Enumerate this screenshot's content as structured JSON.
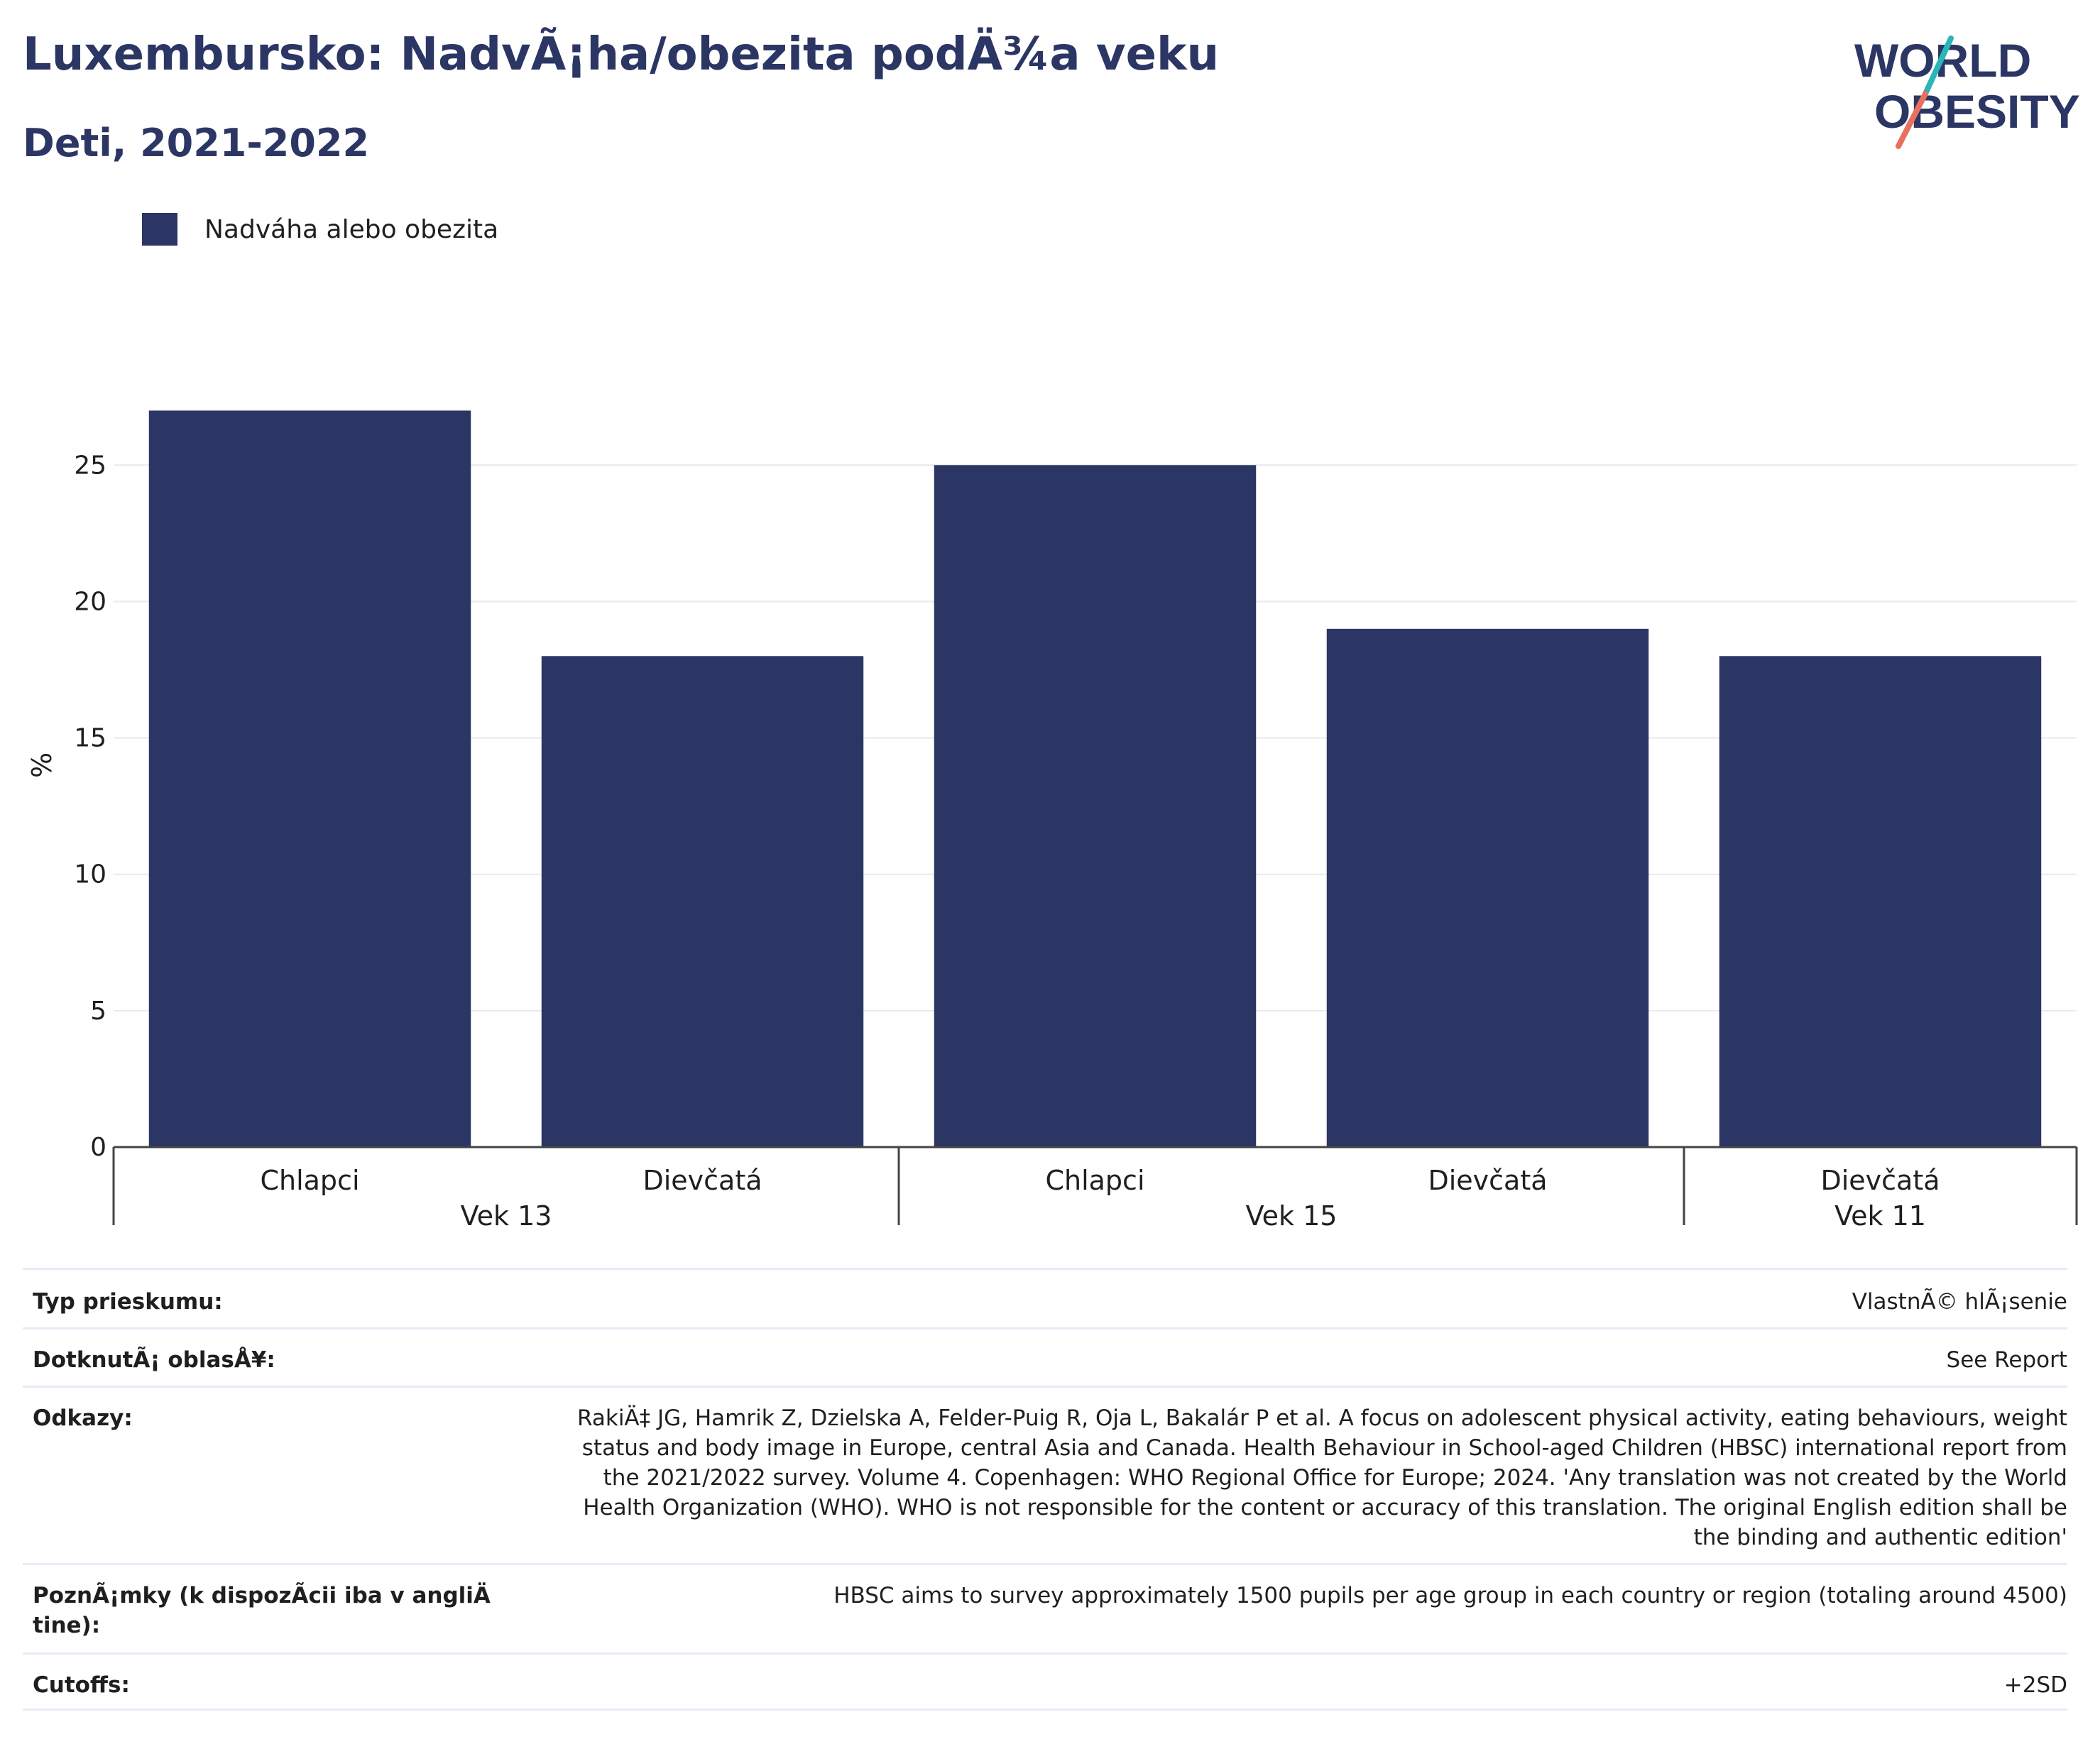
{
  "header": {
    "title": "Luxembursko: NadvÃ¡ha/obezita podÄ¾a veku",
    "subtitle": "Deti, 2021-2022"
  },
  "logo": {
    "line1": "WORLD",
    "line2": "OBESITY",
    "colors": {
      "text": "#2b3664",
      "slash_teal": "#2bb5b8",
      "slash_coral": "#e8705f"
    }
  },
  "legend": {
    "label": "Nadváha alebo obezita",
    "color": "#2b3664"
  },
  "chart_data": {
    "type": "bar",
    "title": "",
    "ylabel": "%",
    "ylim": [
      0,
      28
    ],
    "yticks": [
      0,
      5,
      10,
      15,
      20,
      25
    ],
    "grid": true,
    "legend_position": "top-left",
    "bar_color": "#2b3664",
    "groups": [
      {
        "label": "Vek 13",
        "categories": [
          "Chlapci",
          "Dievčatá"
        ],
        "values": [
          27,
          18
        ]
      },
      {
        "label": "Vek 15",
        "categories": [
          "Chlapci",
          "Dievčatá"
        ],
        "values": [
          25,
          19
        ]
      },
      {
        "label": "Vek 11",
        "categories": [
          "Dievčatá"
        ],
        "values": [
          18
        ]
      }
    ],
    "series": [
      {
        "name": "Nadváha alebo obezita"
      }
    ]
  },
  "info": [
    {
      "label": "Typ prieskumu:",
      "value": "VlastnÃ© hlÃ¡senie"
    },
    {
      "label": "DotknutÃ¡ oblasÅ¥:",
      "value": "See Report"
    },
    {
      "label": "Odkazy:",
      "value": "RakiÄ‡ JG, Hamrik Z, Dzielska A, Felder-Puig R, Oja L, Bakalár P et al. A focus on adolescent physical activity, eating behaviours, weight status and body image in Europe, central Asia and Canada. Health Behaviour in School-aged Children (HBSC) international report from the 2021/2022 survey. Volume 4. Copenhagen: WHO Regional Office for Europe; 2024. 'Any translation was not created by the World Health Organization (WHO). WHO is not responsible for the content or accuracy of this translation. The original English edition shall be the binding and authentic edition'"
    },
    {
      "label": "PoznÃ¡mky (k dispozÃcii iba v angliÄ tine):",
      "value": "HBSC aims to survey approximately 1500 pupils per age group in each country or region (totaling around 4500)"
    },
    {
      "label": "Cutoffs:",
      "value": "+2SD"
    }
  ]
}
